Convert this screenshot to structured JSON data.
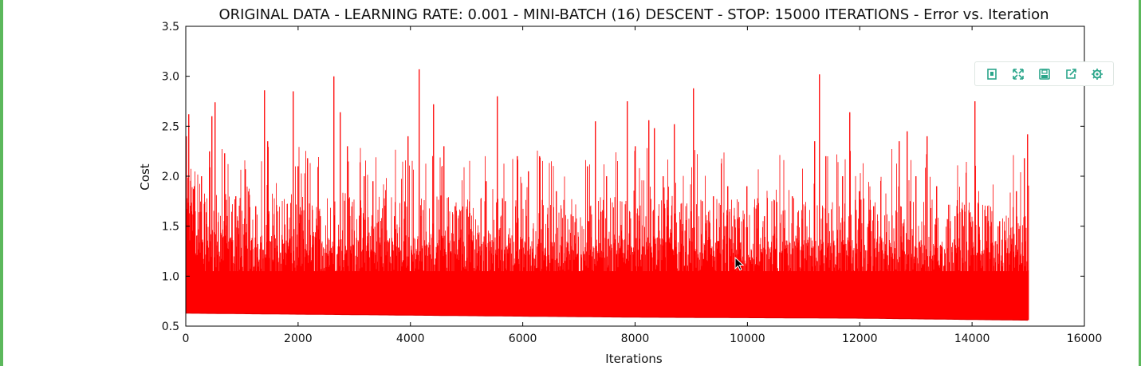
{
  "chart_data": {
    "type": "line",
    "title": "ORIGINAL DATA - LEARNING RATE: 0.001 - MINI-BATCH (16) DESCENT - STOP: 15000 ITERATIONS - Error vs. Iteration",
    "xlabel": "Iterations",
    "ylabel": "Cost",
    "xlim": [
      0,
      16000
    ],
    "ylim": [
      0.5,
      3.5
    ],
    "xticks": [
      0,
      2000,
      4000,
      6000,
      8000,
      10000,
      12000,
      14000,
      16000
    ],
    "yticks": [
      0.5,
      1.0,
      1.5,
      2.0,
      2.5,
      3.0,
      3.5
    ],
    "xtick_labels": [
      "0",
      "2000",
      "4000",
      "6000",
      "8000",
      "10000",
      "12000",
      "14000",
      "16000"
    ],
    "ytick_labels": [
      "0.5",
      "1.0",
      "1.5",
      "2.0",
      "2.5",
      "3.0",
      "3.5"
    ],
    "grid": false,
    "series": [
      {
        "color": "#ff0000",
        "x_range": [
          0,
          15000
        ],
        "floor": [
          [
            0,
            0.63
          ],
          [
            4000,
            0.61
          ],
          [
            8000,
            0.59
          ],
          [
            12000,
            0.58
          ],
          [
            15000,
            0.56
          ]
        ],
        "spikes": [
          [
            20,
            2.4
          ],
          [
            60,
            2.62
          ],
          [
            150,
            1.9
          ],
          [
            280,
            2.0
          ],
          [
            420,
            2.25
          ],
          [
            470,
            2.6
          ],
          [
            520,
            2.74
          ],
          [
            690,
            2.23
          ],
          [
            900,
            1.8
          ],
          [
            1060,
            2.07
          ],
          [
            1250,
            1.7
          ],
          [
            1410,
            2.86
          ],
          [
            1460,
            2.35
          ],
          [
            1920,
            2.85
          ],
          [
            2000,
            2.1
          ],
          [
            2170,
            2.18
          ],
          [
            2400,
            1.6
          ],
          [
            2640,
            3.0
          ],
          [
            2760,
            2.64
          ],
          [
            2880,
            2.3
          ],
          [
            3180,
            2.0
          ],
          [
            3340,
            1.95
          ],
          [
            3720,
            1.6
          ],
          [
            3960,
            2.4
          ],
          [
            4160,
            3.07
          ],
          [
            4420,
            2.72
          ],
          [
            4600,
            2.3
          ],
          [
            4800,
            1.7
          ],
          [
            5350,
            1.95
          ],
          [
            5550,
            2.8
          ],
          [
            5700,
            1.75
          ],
          [
            5900,
            2.2
          ],
          [
            6100,
            2.05
          ],
          [
            6300,
            2.2
          ],
          [
            6600,
            1.85
          ],
          [
            6900,
            1.6
          ],
          [
            7150,
            2.1
          ],
          [
            7300,
            2.55
          ],
          [
            7500,
            2.0
          ],
          [
            7860,
            2.75
          ],
          [
            8000,
            2.3
          ],
          [
            8250,
            2.56
          ],
          [
            8350,
            2.48
          ],
          [
            8500,
            2.0
          ],
          [
            8700,
            2.52
          ],
          [
            9050,
            2.88
          ],
          [
            9200,
            1.75
          ],
          [
            9400,
            1.8
          ],
          [
            9650,
            1.9
          ],
          [
            10000,
            1.9
          ],
          [
            10300,
            1.6
          ],
          [
            10800,
            1.8
          ],
          [
            11200,
            2.35
          ],
          [
            11280,
            3.02
          ],
          [
            11400,
            2.2
          ],
          [
            11700,
            2.0
          ],
          [
            11830,
            2.64
          ],
          [
            12000,
            1.85
          ],
          [
            12250,
            1.7
          ],
          [
            12700,
            2.35
          ],
          [
            12850,
            2.45
          ],
          [
            13000,
            2.0
          ],
          [
            13200,
            2.4
          ],
          [
            13380,
            1.9
          ],
          [
            13700,
            1.6
          ],
          [
            14050,
            2.75
          ],
          [
            14250,
            1.6
          ],
          [
            14500,
            1.55
          ],
          [
            14800,
            1.85
          ],
          [
            14930,
            2.18
          ],
          [
            14990,
            2.42
          ]
        ]
      }
    ]
  },
  "toolbar": {
    "icons": [
      "bookmark-icon",
      "expand-icon",
      "save-icon",
      "export-icon",
      "settings-icon"
    ],
    "accent": "#2aa58a"
  }
}
